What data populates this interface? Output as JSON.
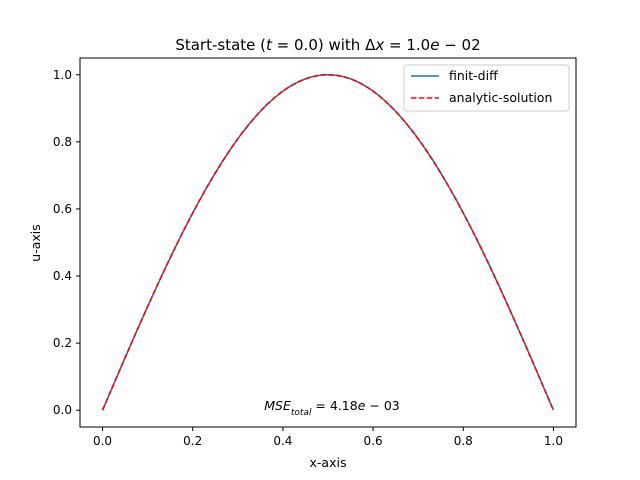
{
  "chart_data": {
    "type": "line",
    "title": "Start-state (t = 0.0) with Δx = 1.0e − 02",
    "title_parts": {
      "prefix": "Start-state (",
      "t_var": "t",
      "t_eq": " = 0.0",
      "mid": ") with ",
      "dx_sym": "Δ",
      "dx_var": "x",
      "dx_eq": " = 1.0",
      "dx_e": "e",
      "dx_exp": " − 02"
    },
    "xlabel": "x-axis",
    "ylabel": "u-axis",
    "xlim": [
      -0.05,
      1.05
    ],
    "ylim": [
      -0.05,
      1.05
    ],
    "xticks": [
      "0.0",
      "0.2",
      "0.4",
      "0.6",
      "0.8",
      "1.0"
    ],
    "yticks": [
      "0.0",
      "0.2",
      "0.4",
      "0.6",
      "0.8",
      "1.0"
    ],
    "grid": false,
    "legend_position": "top-right",
    "function": "u(x) = sin(pi * x), x in [0, 1]",
    "x": [
      0.0,
      0.1,
      0.2,
      0.3,
      0.4,
      0.5,
      0.6,
      0.7,
      0.8,
      0.9,
      1.0
    ],
    "series": [
      {
        "name": "finit-diff",
        "color": "#1f77b4",
        "style": "solid",
        "values": [
          0.0,
          0.309,
          0.588,
          0.809,
          0.951,
          1.0,
          0.951,
          0.809,
          0.588,
          0.309,
          0.0
        ]
      },
      {
        "name": "analytic-solution",
        "color": "#ff0000",
        "style": "dashed",
        "values": [
          0.0,
          0.309,
          0.588,
          0.809,
          0.951,
          1.0,
          0.951,
          0.809,
          0.588,
          0.309,
          0.0
        ]
      }
    ],
    "annotation": {
      "text": "MSE_total = 4.18e − 03",
      "var": "MSE",
      "sub": "total",
      "eq": " = 4.18",
      "e": "e",
      "exp": " − 03",
      "x": 0.5,
      "y": 0.0
    }
  }
}
